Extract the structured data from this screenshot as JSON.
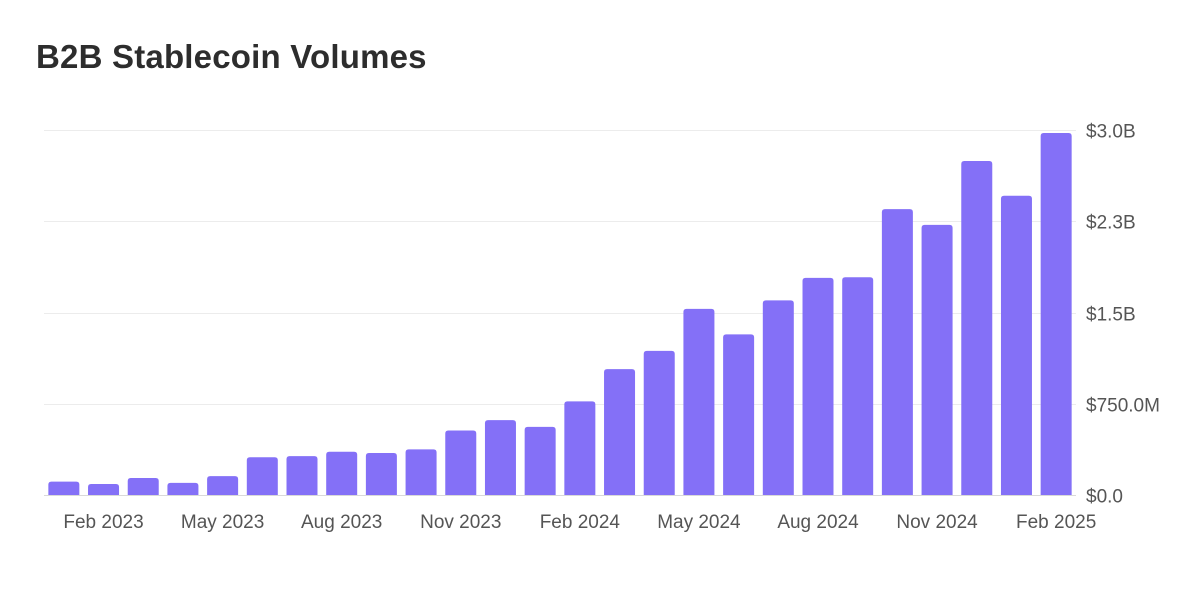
{
  "title": "B2B Stablecoin Volumes",
  "colors": {
    "bar": "#8470f7",
    "grid": "#ececec",
    "tick_text": "#555555",
    "title": "#2d2d2d"
  },
  "chart_data": {
    "type": "bar",
    "title": "B2B Stablecoin Volumes",
    "xlabel": "",
    "ylabel": "",
    "y_axis_side": "right",
    "ylim": [
      0,
      3000000000
    ],
    "y_ticks": [
      {
        "value": 0,
        "label": "$0.0"
      },
      {
        "value": 750000000,
        "label": "$750.0M"
      },
      {
        "value": 1500000000,
        "label": "$1.5B"
      },
      {
        "value": 2250000000,
        "label": "$2.3B"
      },
      {
        "value": 3000000000,
        "label": "$3.0B"
      }
    ],
    "categories": [
      "Jan 2023",
      "Feb 2023",
      "Mar 2023",
      "Apr 2023",
      "May 2023",
      "Jun 2023",
      "Jul 2023",
      "Aug 2023",
      "Sep 2023",
      "Oct 2023",
      "Nov 2023",
      "Dec 2023",
      "Jan 2024",
      "Feb 2024",
      "Mar 2024",
      "Apr 2024",
      "May 2024",
      "Jun 2024",
      "Jul 2024",
      "Aug 2024",
      "Sep 2024",
      "Oct 2024",
      "Nov 2024",
      "Dec 2024",
      "Jan 2025",
      "Feb 2025"
    ],
    "values": [
      110000000,
      90000000,
      140000000,
      100000000,
      155000000,
      310000000,
      320000000,
      355000000,
      345000000,
      375000000,
      530000000,
      615000000,
      560000000,
      770000000,
      1035000000,
      1185000000,
      1530000000,
      1320000000,
      1600000000,
      1785000000,
      1790000000,
      2350000000,
      2220000000,
      2745000000,
      2460000000,
      2975000000
    ],
    "x_tick_labels": [
      {
        "category": "Feb 2023",
        "label": "Feb 2023"
      },
      {
        "category": "May 2023",
        "label": "May 2023"
      },
      {
        "category": "Aug 2023",
        "label": "Aug 2023"
      },
      {
        "category": "Nov 2023",
        "label": "Nov 2023"
      },
      {
        "category": "Feb 2024",
        "label": "Feb 2024"
      },
      {
        "category": "May 2024",
        "label": "May 2024"
      },
      {
        "category": "Aug 2024",
        "label": "Aug 2024"
      },
      {
        "category": "Nov 2024",
        "label": "Nov 2024"
      },
      {
        "category": "Feb 2025",
        "label": "Feb 2025"
      }
    ],
    "grid": true,
    "legend": "none"
  }
}
